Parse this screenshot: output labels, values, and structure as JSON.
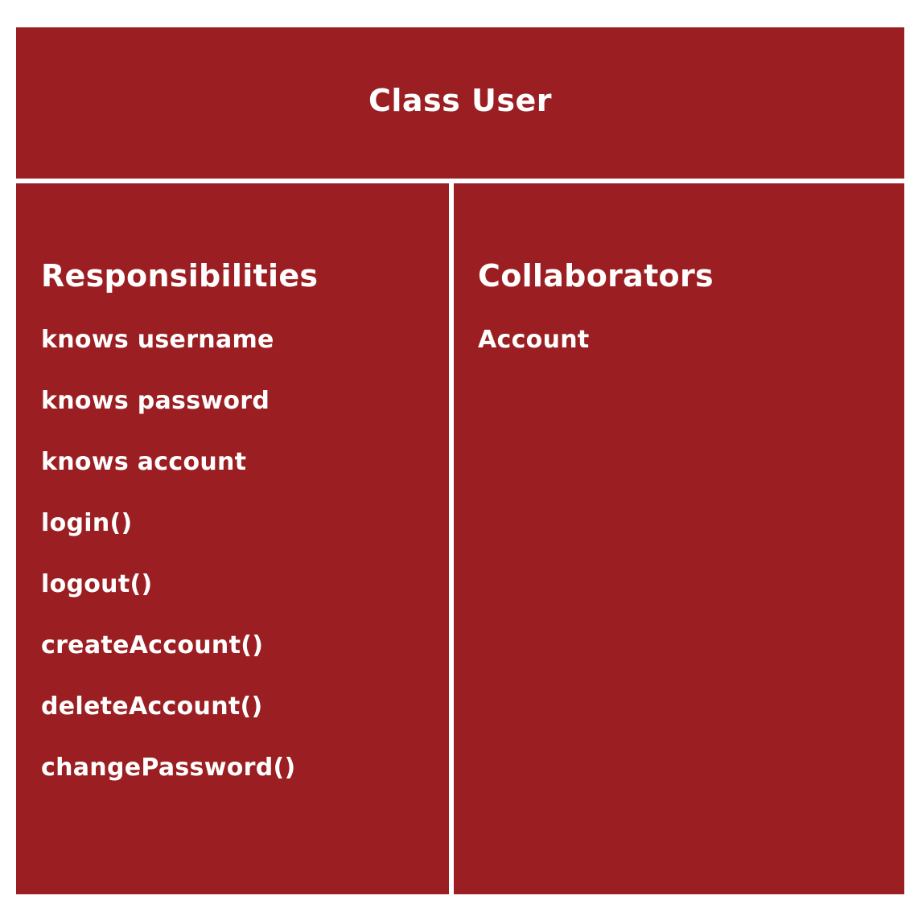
{
  "title": "Class User",
  "responsibilities": {
    "heading": "Responsibilities",
    "items": [
      "knows username",
      "knows password",
      "knows account",
      "login()",
      "logout()",
      "createAccount()",
      "deleteAccount()",
      "changePassword()"
    ]
  },
  "collaborators": {
    "heading": "Collaborators",
    "items": [
      "Account"
    ]
  },
  "colors": {
    "card_background": "#9b1f22",
    "text": "#ffffff",
    "page_background": "#ffffff"
  }
}
